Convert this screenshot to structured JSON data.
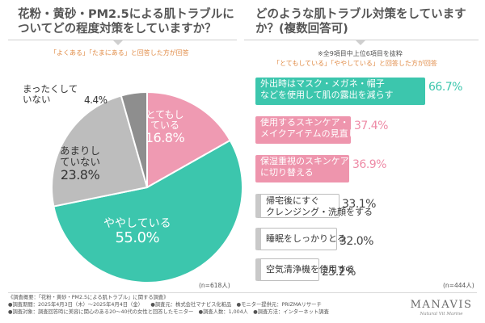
{
  "left_panel": {
    "title": "花粉・黄砂・PM2.5による肌トラブルについてどの程度対策をしていますか？",
    "subnote": "「よくある」「たまにある」と回答した方が回答",
    "n_label": "(n=618人)"
  },
  "right_panel": {
    "title": "どのような肌トラブル対策をしていますか？(複数回答可)",
    "note": "※全9項目中上位6項目を抜粋",
    "subnote": "「とてもしている」「ややしている」と回答した方が回答",
    "n_label": "(n=444人)"
  },
  "chart_data": [
    {
      "type": "pie",
      "title": "花粉・黄砂・PM2.5による肌トラブルについてどの程度対策をしていますか？",
      "unit": "%",
      "slices": [
        {
          "label": "とてもしている",
          "value": 16.8,
          "value_text": "16.8%",
          "color": "#ef9ab2"
        },
        {
          "label": "ややしている",
          "value": 55.0,
          "value_text": "55.0%",
          "color": "#3cc6ad"
        },
        {
          "label": "あまりしていない",
          "value": 23.8,
          "value_text": "23.8%",
          "color": "#bdbdbd"
        },
        {
          "label": "まったくしていない",
          "value": 4.4,
          "value_text": "4.4%",
          "color": "#8e8e8e"
        }
      ]
    },
    {
      "type": "bar",
      "title": "どのような肌トラブル対策をしていますか？(複数回答可)",
      "unit": "%",
      "categories": [
        "外出時はマスク・メガネ・帽子などを使用して肌の露出を減らす",
        "使用するスキンケア・メイクアイテムの見直し・変更",
        "保湿重視のスキンケアに切り替える",
        "帰宅後にすぐクレンジング・洗顔をする",
        "睡眠をしっかりとる",
        "空気清浄機を使用する"
      ],
      "values": [
        66.7,
        37.4,
        36.9,
        33.1,
        32.0,
        25.2
      ],
      "bars": [
        {
          "lines": [
            "外出時はマスク・メガネ・帽子",
            "などを使用して肌の露出を減らす"
          ],
          "value_text": "66.7%",
          "style": "teal"
        },
        {
          "lines": [
            "使用するスキンケア・",
            "メイクアイテムの見直し・変更"
          ],
          "value_text": "37.4%",
          "style": "pink"
        },
        {
          "lines": [
            "保湿重視のスキンケア",
            "に切り替える"
          ],
          "value_text": "36.9%",
          "style": "pink"
        },
        {
          "lines": [
            "帰宅後にすぐ",
            "クレンジング・洗顔をする"
          ],
          "value_text": "33.1%",
          "style": "grey"
        },
        {
          "lines": [
            "睡眠をしっかりとる"
          ],
          "value_text": "32.0%",
          "style": "grey"
        },
        {
          "lines": [
            "空気清浄機を使用する"
          ],
          "value_text": "25.2%",
          "style": "grey"
        }
      ]
    }
  ],
  "footer": {
    "lines": [
      "《調査概要：「花粉・黄砂・PM2.5による肌トラブル」に関する調査》",
      "●調査期間：2025年4月3日（木）〜2025年4月4日（金）　　●調査元：株式会社マナビス化粧品　●モニター提供元：PRIZMAリサーチ",
      "●調査対象：調査回答時に美容に関心のある20〜40代の女性と回答したモニター　●調査人数：1,004人　●調査方法：インターネット調査"
    ]
  },
  "logo": {
    "name": "MANAVIS",
    "tagline": "Natural Vit Marine"
  }
}
